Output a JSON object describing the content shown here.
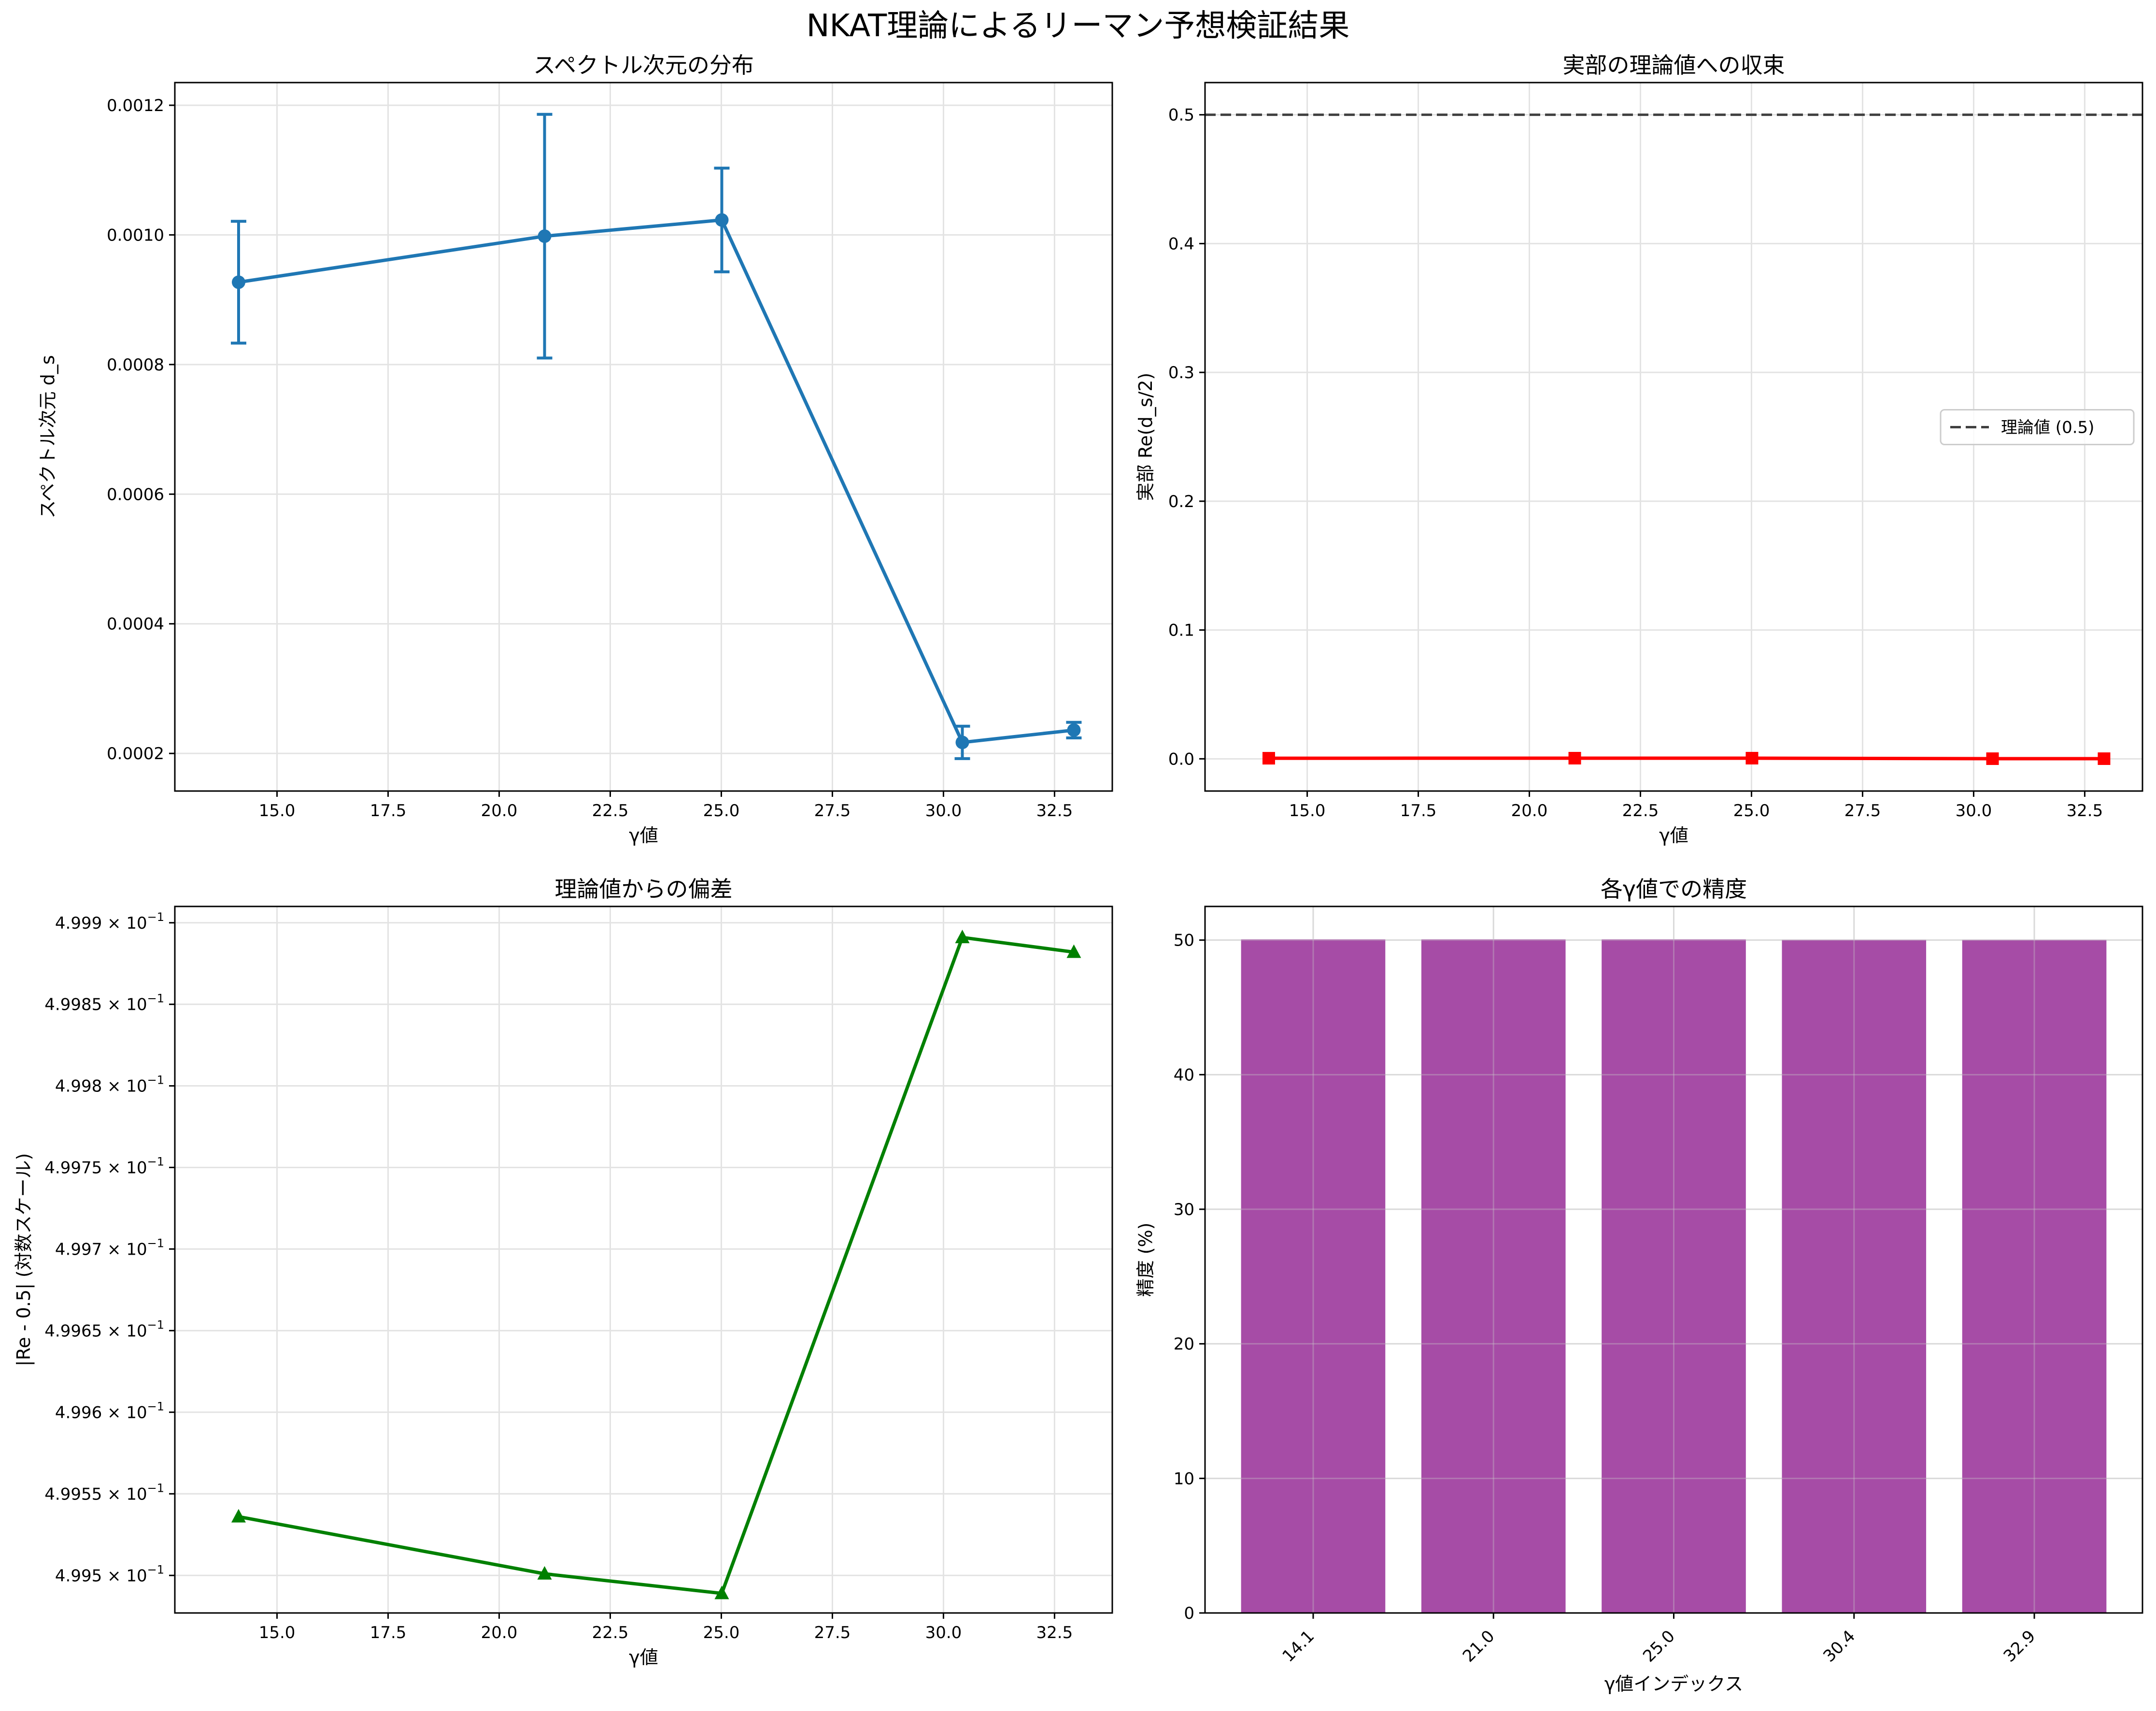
{
  "figure": {
    "title": "NKAT理論によるリーマン予想検証結果"
  },
  "chart_data": [
    {
      "type": "line",
      "title": "スペクトル次元の分布",
      "xlabel": "γ値",
      "ylabel": "スペクトル次元 d_s",
      "x": [
        14.134725,
        21.02204,
        25.010858,
        30.424876,
        32.935062
      ],
      "series": [
        {
          "values": [
            0.000927,
            0.000998,
            0.001023,
            0.000217,
            0.000236
          ],
          "errors": [
            9.4e-05,
            0.000188,
            8e-05,
            2.5e-05,
            1.2e-05
          ],
          "color": "#1f77b4",
          "marker": "circle"
        }
      ],
      "xlim": [
        12.7,
        33.8
      ],
      "ylim": [
        0.000142,
        0.001235
      ],
      "xticks": [
        15.0,
        17.5,
        20.0,
        22.5,
        25.0,
        27.5,
        30.0,
        32.5
      ],
      "xtick_labels": [
        "15.0",
        "17.5",
        "20.0",
        "22.5",
        "25.0",
        "27.5",
        "30.0",
        "32.5"
      ],
      "yticks": [
        0.0002,
        0.0004,
        0.0006,
        0.0008,
        0.001,
        0.0012
      ],
      "ytick_labels": [
        "0.0002",
        "0.0004",
        "0.0006",
        "0.0008",
        "0.0010",
        "0.0012"
      ],
      "grid": true
    },
    {
      "type": "line",
      "title": "実部の理論値への収束",
      "xlabel": "γ値",
      "ylabel": "実部 Re(d_s/2)",
      "x": [
        14.134725,
        21.02204,
        25.010858,
        30.424876,
        32.935062
      ],
      "series": [
        {
          "values": [
            0.00046,
            0.0005,
            0.00051,
            0.00011,
            0.00012
          ],
          "color": "#ff0000",
          "marker": "square"
        }
      ],
      "reference_line": {
        "name": "理論値 (0.5)",
        "value": 0.5,
        "color": "#404040",
        "style": "dashed"
      },
      "legend": {
        "position": "right"
      },
      "xlim": [
        12.7,
        33.8
      ],
      "ylim": [
        -0.025,
        0.525
      ],
      "xticks": [
        15.0,
        17.5,
        20.0,
        22.5,
        25.0,
        27.5,
        30.0,
        32.5
      ],
      "xtick_labels": [
        "15.0",
        "17.5",
        "20.0",
        "22.5",
        "25.0",
        "27.5",
        "30.0",
        "32.5"
      ],
      "yticks": [
        0.0,
        0.1,
        0.2,
        0.3,
        0.4,
        0.5
      ],
      "ytick_labels": [
        "0.0",
        "0.1",
        "0.2",
        "0.3",
        "0.4",
        "0.5"
      ],
      "grid": true
    },
    {
      "type": "line",
      "title": "理論値からの偏差",
      "xlabel": "γ値",
      "ylabel": "|Re - 0.5| (対数スケール)",
      "yscale": "log",
      "x": [
        14.134725,
        21.02204,
        25.010858,
        30.424876,
        32.935062
      ],
      "series": [
        {
          "values": [
            0.499536,
            0.499501,
            0.499489,
            0.499891,
            0.499882
          ],
          "color": "#008000",
          "marker": "triangle"
        }
      ],
      "xlim": [
        12.7,
        33.8
      ],
      "ylim": [
        0.499477,
        0.49991
      ],
      "xticks": [
        15.0,
        17.5,
        20.0,
        22.5,
        25.0,
        27.5,
        30.0,
        32.5
      ],
      "xtick_labels": [
        "15.0",
        "17.5",
        "20.0",
        "22.5",
        "25.0",
        "27.5",
        "30.0",
        "32.5"
      ],
      "yticks": [
        0.4995,
        0.49955,
        0.4996,
        0.49965,
        0.4997,
        0.49975,
        0.4998,
        0.49985,
        0.4999
      ],
      "ytick_mantissas": [
        "4.995",
        "4.9955",
        "4.996",
        "4.9965",
        "4.997",
        "4.9975",
        "4.998",
        "4.9985",
        "4.999"
      ],
      "ytick_base": "× 10",
      "ytick_exponent": "−1",
      "grid": true
    },
    {
      "type": "bar",
      "title": "各γ値での精度",
      "xlabel": "γ値インデックス",
      "ylabel": "精度 (%)",
      "categories": [
        "14.1",
        "21.0",
        "25.0",
        "30.4",
        "32.9"
      ],
      "values": [
        50.05,
        50.05,
        50.05,
        50.01,
        50.01
      ],
      "color": "#a64ca6",
      "ylim": [
        0,
        52.5
      ],
      "yticks": [
        0,
        10,
        20,
        30,
        40,
        50
      ],
      "ytick_labels": [
        "0",
        "10",
        "20",
        "30",
        "40",
        "50"
      ],
      "grid": true
    }
  ]
}
